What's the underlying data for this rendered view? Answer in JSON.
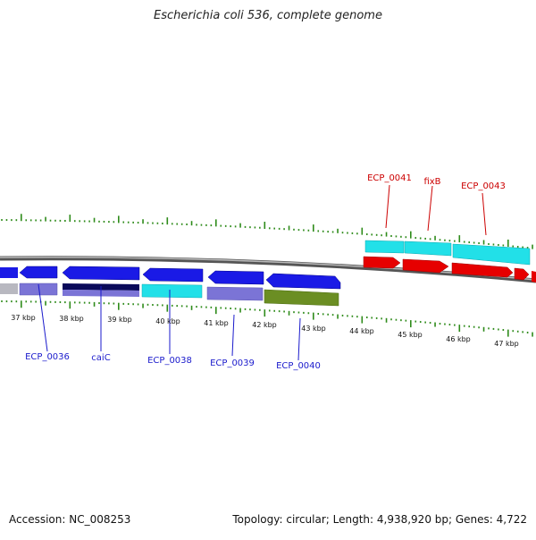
{
  "title": "Escherichia coli 536, complete genome",
  "footer": {
    "accession": "Accession: NC_008253",
    "summary": "Topology: circular; Length: 4,938,920 bp; Genes: 4,722"
  },
  "colors": {
    "reverse_gene": "#1a1ae6",
    "forward_gene": "#e60000",
    "cyan_feature": "#22e0e8",
    "reverse_label": "#1a1acc",
    "forward_label": "#cc0000",
    "tick": "#2e8b1a",
    "backbone": "#7a7a7a"
  },
  "scale_labels": [
    "37 kbp",
    "38 kbp",
    "39 kbp",
    "40 kbp",
    "41 kbp",
    "42 kbp",
    "43 kbp",
    "44 kbp",
    "45 kbp",
    "46 kbp",
    "47 kbp"
  ],
  "forward_genes": [
    {
      "name": "ECP_0041"
    },
    {
      "name": "fixB"
    },
    {
      "name": "ECP_0043"
    }
  ],
  "reverse_genes": [
    {
      "name": "ECP_0036"
    },
    {
      "name": "caiC"
    },
    {
      "name": "ECP_0038"
    },
    {
      "name": "ECP_0039"
    },
    {
      "name": "ECP_0040"
    }
  ]
}
